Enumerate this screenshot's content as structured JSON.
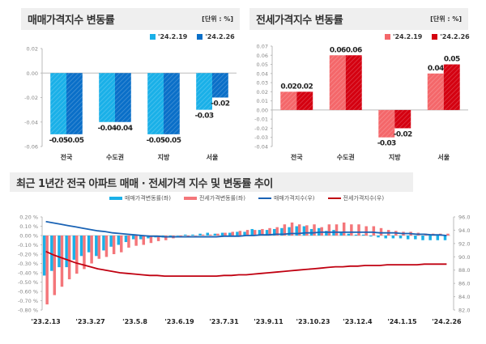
{
  "chart_data": [
    {
      "id": "sale",
      "type": "bar",
      "title": "매매가격지수 변동률",
      "unit": "[단위 : %]",
      "categories": [
        "전국",
        "수도권",
        "지방",
        "서울"
      ],
      "series": [
        {
          "name": "'24.2.19",
          "color": "#1ab0e8",
          "values": [
            -0.05,
            -0.04,
            -0.05,
            -0.03
          ]
        },
        {
          "name": "'24.2.26",
          "color": "#0a6fc8",
          "values": [
            -0.05,
            -0.04,
            -0.05,
            -0.02
          ]
        }
      ],
      "labels": [
        [
          "-0.05",
          "-0.04",
          "-0.05",
          "-0.03"
        ],
        [
          "-0.05",
          "-0.04",
          "-0.05",
          "-0.02"
        ]
      ],
      "ylim": [
        -0.06,
        0.02
      ],
      "yticks": [
        "0.02",
        "0.00",
        "-0.02",
        "-0.04",
        "-0.06"
      ],
      "ytick_values": [
        0.02,
        0.0,
        -0.02,
        -0.04,
        -0.06
      ]
    },
    {
      "id": "jeonse",
      "type": "bar",
      "title": "전세가격지수 변동률",
      "unit": "[단위 : %]",
      "categories": [
        "전국",
        "수도권",
        "지방",
        "서울"
      ],
      "series": [
        {
          "name": "'24.2.19",
          "color": "#f4676a",
          "values": [
            0.02,
            0.06,
            -0.03,
            0.04
          ]
        },
        {
          "name": "'24.2.26",
          "color": "#d40010",
          "values": [
            0.02,
            0.06,
            -0.02,
            0.05
          ]
        }
      ],
      "labels": [
        [
          "0.02",
          "0.06",
          "-0.03",
          "0.04"
        ],
        [
          "0.02",
          "0.06",
          "-0.02",
          "0.05"
        ]
      ],
      "ylim": [
        -0.04,
        0.07
      ],
      "yticks": [
        "0.07",
        "0.06",
        "0.05",
        "0.04",
        "0.03",
        "0.02",
        "0.01",
        "0.00",
        "-0.01",
        "-0.02",
        "-0.03",
        "-0.04"
      ],
      "ytick_values": [
        0.07,
        0.06,
        0.05,
        0.04,
        0.03,
        0.02,
        0.01,
        0.0,
        -0.01,
        -0.02,
        -0.03,
        -0.04
      ]
    },
    {
      "id": "trend",
      "type": "bar",
      "title": "최근 1년간 전국 아파트 매매 · 전세가격 지수 및 변동률 추이",
      "legend": [
        "매매가격변동률(좌)",
        "전세가격변동률(좌)",
        "매매가격지수(우)",
        "전세가격지수(우)"
      ],
      "x_tick_labels": [
        "'23.2.13",
        "'23.3.27",
        "'23.5.8",
        "'23.6.19",
        "'23.7.31",
        "'23.9.11",
        "'23.10.23",
        "'23.12.4",
        "'24.1.15",
        "'24.2.26"
      ],
      "x_tick_every_weeks": 6,
      "weeks": 55,
      "left_axis": {
        "ylim": [
          -0.8,
          0.2
        ],
        "ticks": [
          "0.20 %",
          "0.10 %",
          "0.00 %",
          "-0.10 %",
          "-0.20 %",
          "-0.30 %",
          "-0.40 %",
          "-0.50 %",
          "-0.60 %",
          "-0.70 %",
          "-0.80 %"
        ],
        "tick_values": [
          0.2,
          0.1,
          0.0,
          -0.1,
          -0.2,
          -0.3,
          -0.4,
          -0.5,
          -0.6,
          -0.7,
          -0.8
        ]
      },
      "right_axis": {
        "ylim": [
          82.0,
          96.0
        ],
        "ticks": [
          "96.0",
          "94.0",
          "92.0",
          "90.0",
          "88.0",
          "86.0",
          "84.0",
          "82.0"
        ],
        "tick_values": [
          96,
          94,
          92,
          90,
          88,
          86,
          84,
          82
        ]
      },
      "series": [
        {
          "name": "매매가격변동률(좌)",
          "kind": "bar",
          "color": "#1ab0e8",
          "values": [
            -0.43,
            -0.38,
            -0.34,
            -0.34,
            -0.26,
            -0.22,
            -0.18,
            -0.22,
            -0.16,
            -0.12,
            -0.1,
            -0.07,
            -0.04,
            -0.04,
            -0.03,
            -0.02,
            -0.02,
            -0.01,
            0.0,
            0.01,
            0.01,
            0.02,
            0.03,
            0.02,
            0.03,
            0.03,
            0.04,
            0.04,
            0.07,
            0.06,
            0.06,
            0.07,
            0.08,
            0.09,
            0.1,
            0.1,
            0.07,
            0.08,
            0.05,
            0.06,
            0.03,
            0.02,
            0.01,
            0.01,
            -0.01,
            -0.02,
            -0.03,
            -0.03,
            -0.03,
            -0.04,
            -0.04,
            -0.05,
            -0.05,
            -0.05,
            -0.05
          ]
        },
        {
          "name": "전세가격변동률(좌)",
          "kind": "bar",
          "color": "#f4767a",
          "values": [
            -0.74,
            -0.64,
            -0.55,
            -0.47,
            -0.41,
            -0.36,
            -0.3,
            -0.25,
            -0.23,
            -0.2,
            -0.18,
            -0.13,
            -0.11,
            -0.1,
            -0.08,
            -0.06,
            -0.05,
            -0.03,
            -0.02,
            -0.01,
            0.0,
            0.01,
            0.01,
            0.02,
            0.03,
            0.04,
            0.05,
            0.06,
            0.06,
            0.07,
            0.08,
            0.09,
            0.12,
            0.14,
            0.12,
            0.11,
            0.12,
            0.09,
            0.12,
            0.12,
            0.14,
            0.12,
            0.12,
            0.1,
            0.1,
            0.08,
            0.06,
            0.05,
            0.04,
            0.04,
            0.03,
            0.02,
            0.02,
            0.02,
            0.02
          ]
        },
        {
          "name": "매매가격지수(우)",
          "kind": "line",
          "color": "#1a63b5",
          "values": [
            95.3,
            95.1,
            94.9,
            94.7,
            94.5,
            94.3,
            94.1,
            93.9,
            93.8,
            93.6,
            93.5,
            93.4,
            93.3,
            93.2,
            93.1,
            93.1,
            93.0,
            93.0,
            93.0,
            93.0,
            93.0,
            93.0,
            93.0,
            93.0,
            93.1,
            93.1,
            93.1,
            93.2,
            93.2,
            93.3,
            93.3,
            93.4,
            93.4,
            93.5,
            93.5,
            93.6,
            93.6,
            93.7,
            93.7,
            93.7,
            93.7,
            93.7,
            93.7,
            93.7,
            93.7,
            93.6,
            93.6,
            93.6,
            93.5,
            93.5,
            93.4,
            93.4,
            93.3,
            93.3,
            93.2
          ]
        },
        {
          "name": "전세가격지수(우)",
          "kind": "line",
          "color": "#c00010",
          "values": [
            90.8,
            90.3,
            89.9,
            89.5,
            89.1,
            88.8,
            88.5,
            88.2,
            88.0,
            87.8,
            87.6,
            87.5,
            87.4,
            87.3,
            87.2,
            87.2,
            87.1,
            87.1,
            87.1,
            87.1,
            87.1,
            87.1,
            87.1,
            87.1,
            87.2,
            87.2,
            87.3,
            87.3,
            87.4,
            87.5,
            87.6,
            87.7,
            87.8,
            87.9,
            88.0,
            88.1,
            88.2,
            88.3,
            88.4,
            88.5,
            88.5,
            88.6,
            88.6,
            88.7,
            88.7,
            88.7,
            88.8,
            88.8,
            88.8,
            88.8,
            88.8,
            88.9,
            88.9,
            88.9,
            88.9
          ]
        }
      ]
    }
  ]
}
